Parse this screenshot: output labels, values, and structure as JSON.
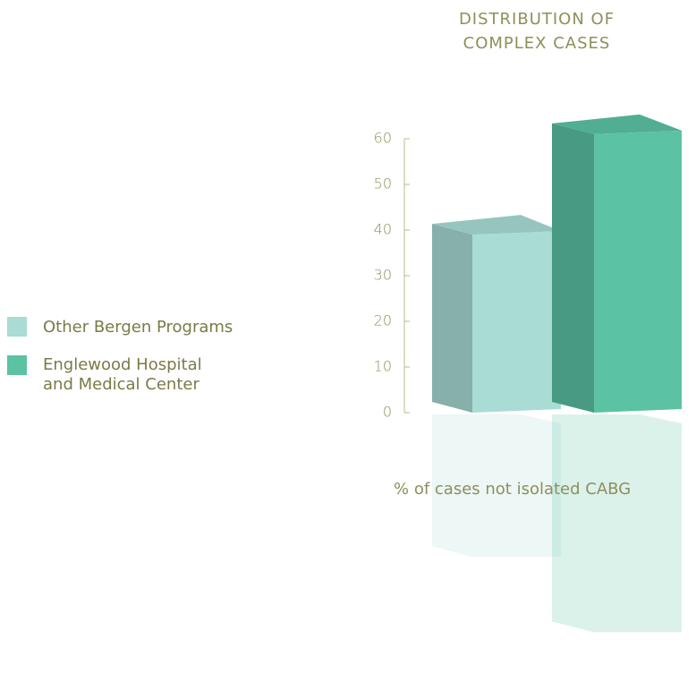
{
  "chart_data": {
    "type": "bar3d",
    "title": "DISTRIBUTION OF COMPLEX CASES",
    "xlabel": "% of cases not isolated CABG",
    "series": [
      {
        "name": "Other Bergen Programs",
        "color": "#a8dcd4",
        "values": [
          39
        ]
      },
      {
        "name": "Englewood Hospital and Medical Center",
        "color": "#5bc2a3",
        "values": [
          61
        ]
      }
    ],
    "ylim": [
      0,
      60
    ],
    "yticks": [
      0,
      10,
      20,
      30,
      40,
      50,
      60
    ]
  }
}
